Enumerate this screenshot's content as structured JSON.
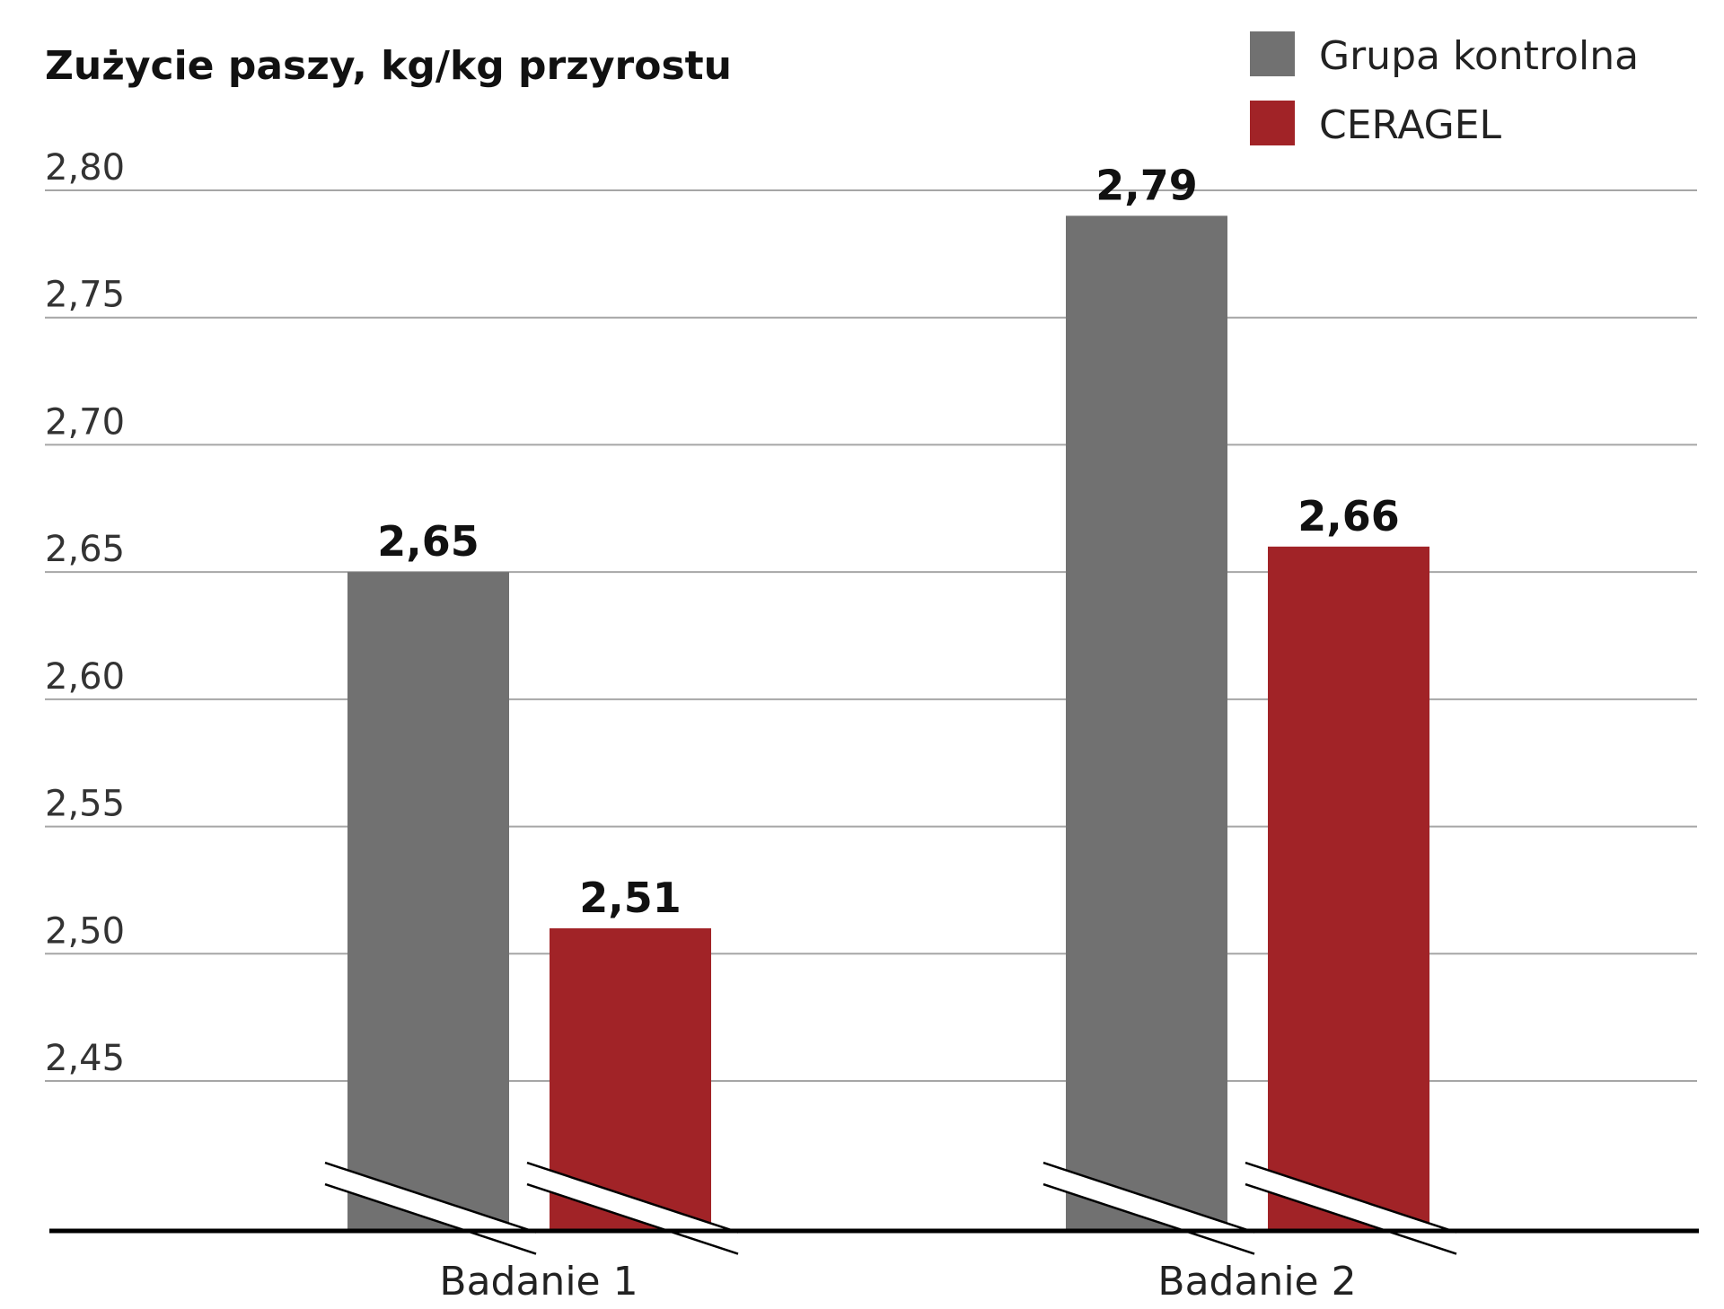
{
  "chart_data": {
    "type": "bar",
    "title": "Zużycie paszy, kg/kg przyrostu",
    "categories": [
      "Badanie 1",
      "Badanie 2"
    ],
    "series": [
      {
        "name": "Grupa kontrolna",
        "color": "#717171",
        "values": [
          2.65,
          2.79
        ],
        "labels": [
          "2,65",
          "2,79"
        ]
      },
      {
        "name": "CERAGEL",
        "color": "#a12327",
        "values": [
          2.51,
          2.66
        ],
        "labels": [
          "2,51",
          "2,66"
        ]
      }
    ],
    "yticks": [
      2.45,
      2.5,
      2.55,
      2.6,
      2.65,
      2.7,
      2.75,
      2.8
    ],
    "ytick_labels": [
      "2,45",
      "2,50",
      "2,55",
      "2,60",
      "2,65",
      "2,70",
      "2,75",
      "2,80"
    ],
    "ylim": [
      2.45,
      2.8
    ],
    "axis_break": true,
    "grid": true,
    "legend_position": "top-right"
  }
}
